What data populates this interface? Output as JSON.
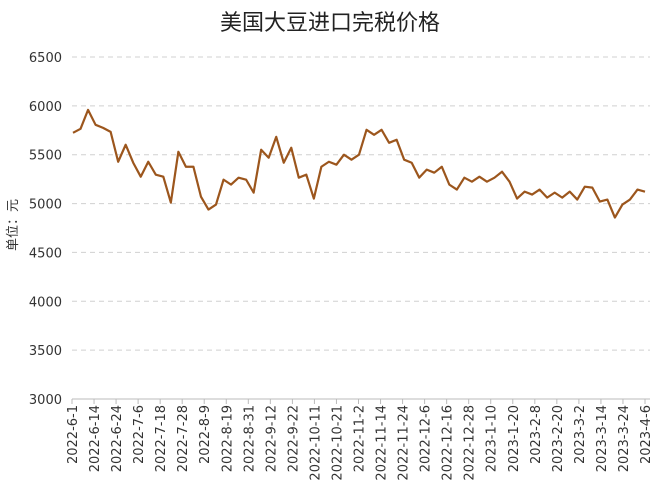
{
  "chart_data": {
    "type": "line",
    "title": "美国大豆进口完税价格",
    "ylabel": "单位：元",
    "xlabel": "",
    "ylim": [
      3000,
      6500
    ],
    "yticks": [
      3000,
      3500,
      4000,
      4500,
      5000,
      5500,
      6000,
      6500
    ],
    "grid": "horizontal dashed",
    "line_color": "#9c561d",
    "xticks": [
      "2022-6-1",
      "2022-6-14",
      "2022-6-24",
      "2022-7-6",
      "2022-7-18",
      "2022-7-28",
      "2022-8-9",
      "2022-8-19",
      "2022-8-31",
      "2022-9-12",
      "2022-9-22",
      "2022-10-11",
      "2022-10-21",
      "2022-11-2",
      "2022-11-14",
      "2022-11-24",
      "2022-12-6",
      "2022-12-16",
      "2022-12-28",
      "2023-1-10",
      "2023-1-20",
      "2023-2-8",
      "2023-2-20",
      "2023-3-2",
      "2023-3-14",
      "2023-3-24",
      "2023-4-6"
    ],
    "values": [
      5724,
      5765,
      5959,
      5806,
      5775,
      5734,
      5428,
      5602,
      5418,
      5275,
      5428,
      5296,
      5275,
      5010,
      5530,
      5377,
      5377,
      5071,
      4939,
      4990,
      5245,
      5194,
      5265,
      5245,
      5112,
      5551,
      5469,
      5683,
      5418,
      5571,
      5265,
      5296,
      5051,
      5377,
      5428,
      5398,
      5500,
      5449,
      5500,
      5755,
      5704,
      5755,
      5622,
      5653,
      5449,
      5418,
      5265,
      5347,
      5316,
      5377,
      5194,
      5143,
      5265,
      5224,
      5275,
      5224,
      5265,
      5326,
      5224,
      5051,
      5122,
      5092,
      5143,
      5061,
      5112,
      5061,
      5122,
      5041,
      5173,
      5163,
      5020,
      5041,
      4857,
      4990,
      5041,
      5143,
      5122
    ]
  }
}
